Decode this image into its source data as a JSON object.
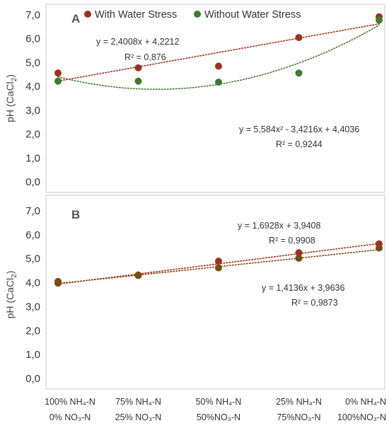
{
  "chart_data": [
    {
      "type": "scatter",
      "panel_label": "A",
      "ylabel": "pH (CaCl2)",
      "ylabel_main": "pH (CaCl",
      "ylabel_sub": "2",
      "ylabel_end": ")",
      "ylim": [
        0,
        7
      ],
      "yticks": [
        "0,0",
        "1,0",
        "2,0",
        "3,0",
        "4,0",
        "5,0",
        "6,0",
        "7,0"
      ],
      "legend": [
        "With Water Stress",
        "Without Water Stress"
      ],
      "legend_position": "top",
      "x": [
        1,
        2,
        3,
        4,
        5
      ],
      "series": [
        {
          "name": "With Water Stress",
          "color": "#a0301a",
          "values": [
            4.56,
            4.78,
            4.85,
            6.05,
            6.92
          ],
          "trendline": {
            "kind": "linear",
            "a": 2.4008,
            "b": 4.2212,
            "equation": "y = 2,4008x + 4,2212",
            "r2": "R² = 0,876"
          }
        },
        {
          "name": "Without Water Stress",
          "color": "#3e7b2a",
          "values": [
            4.22,
            4.22,
            4.18,
            4.56,
            6.78
          ],
          "trendline": {
            "kind": "quadratic",
            "a": 5.584,
            "b": -3.4216,
            "c": 4.4036,
            "equation": "y = 5,584x² - 3,4216x + 4,4036",
            "r2": "R² = 0,9244"
          }
        }
      ],
      "grid": false
    },
    {
      "type": "scatter",
      "panel_label": "B",
      "ylabel": "pH (CaCl2)",
      "ylabel_main": "pH (CaCl",
      "ylabel_sub": "2",
      "ylabel_end": ")",
      "ylim": [
        0,
        7
      ],
      "yticks": [
        "0,0",
        "1,0",
        "2,0",
        "3,0",
        "4,0",
        "5,0",
        "6,0",
        "7,0"
      ],
      "x": [
        1,
        2,
        3,
        4,
        5
      ],
      "categories": [
        [
          "100% NH₄-N",
          "0% NO₃-N"
        ],
        [
          "75% NH₄-N",
          "25% NO₃-N"
        ],
        [
          "50% NH₄-N",
          "50%NO₃-N"
        ],
        [
          "25% NH₄-N",
          "75%NO₃-N"
        ],
        [
          "0% NH₄-N",
          "100%NO₃-N"
        ]
      ],
      "series": [
        {
          "name": "With Water Stress",
          "color": "#a0301a",
          "values": [
            4.05,
            4.32,
            4.9,
            5.25,
            5.62
          ],
          "trendline": {
            "kind": "linear",
            "a": 1.6928,
            "b": 3.9408,
            "equation": "y = 1,6928x + 3,9408",
            "r2": "R² = 0,9908"
          }
        },
        {
          "name": "Without Water Stress",
          "color": "#7a4a12",
          "values": [
            3.98,
            4.3,
            4.62,
            5.02,
            5.45
          ],
          "trendline": {
            "kind": "linear",
            "a": 1.4136,
            "b": 3.9636,
            "equation": "y = 1,4136x + 3,9636",
            "r2": "R² = 0,9873"
          }
        }
      ],
      "grid": false
    }
  ]
}
